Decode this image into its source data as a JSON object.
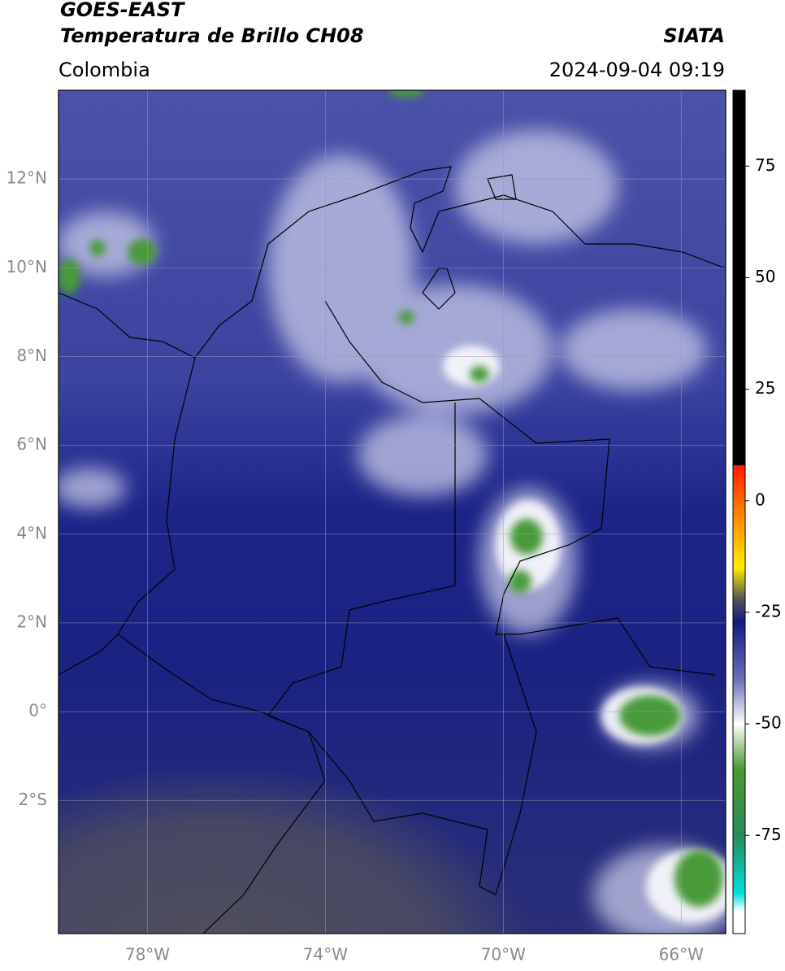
{
  "map": {
    "title": "GOES-EAST",
    "subtitle": "Temperatura de Brillo CH08",
    "source": "SIATA",
    "region": "Colombia",
    "datetime": "2024-09-04 09:19",
    "xlim": [
      -80,
      -65
    ],
    "ylim": [
      -5,
      14
    ],
    "grid": true,
    "xticks": [
      {
        "value": -78,
        "label": "78°W"
      },
      {
        "value": -74,
        "label": "74°W"
      },
      {
        "value": -70,
        "label": "70°W"
      },
      {
        "value": -66,
        "label": "66°W"
      }
    ],
    "yticks": [
      {
        "value": 12,
        "label": "12°N"
      },
      {
        "value": 10,
        "label": "10°N"
      },
      {
        "value": 8,
        "label": "8°N"
      },
      {
        "value": 6,
        "label": "6°N"
      },
      {
        "value": 4,
        "label": "4°N"
      },
      {
        "value": 2,
        "label": "2°N"
      },
      {
        "value": 0,
        "label": "0°"
      },
      {
        "value": -2,
        "label": "2°S"
      }
    ],
    "colorbar": {
      "lim": [
        -97,
        92
      ],
      "ticks": [
        75,
        50,
        25,
        0,
        -25,
        -50,
        -75
      ],
      "stops": [
        {
          "value": 92,
          "color": "#000000"
        },
        {
          "value": 8,
          "color": "#000000"
        },
        {
          "value": 7.9,
          "color": "#ff1a00"
        },
        {
          "value": -5,
          "color": "#ff9900"
        },
        {
          "value": -15,
          "color": "#ffee00"
        },
        {
          "value": -22,
          "color": "#555555"
        },
        {
          "value": -27,
          "color": "#141a80"
        },
        {
          "value": -40,
          "color": "#6a70b8"
        },
        {
          "value": -50,
          "color": "#ffffff"
        },
        {
          "value": -60,
          "color": "#4a9a30"
        },
        {
          "value": -75,
          "color": "#2a8a5a"
        },
        {
          "value": -88,
          "color": "#00e0e0"
        },
        {
          "value": -92,
          "color": "#ffffff"
        },
        {
          "value": -97,
          "color": "#ffffff"
        }
      ]
    }
  }
}
